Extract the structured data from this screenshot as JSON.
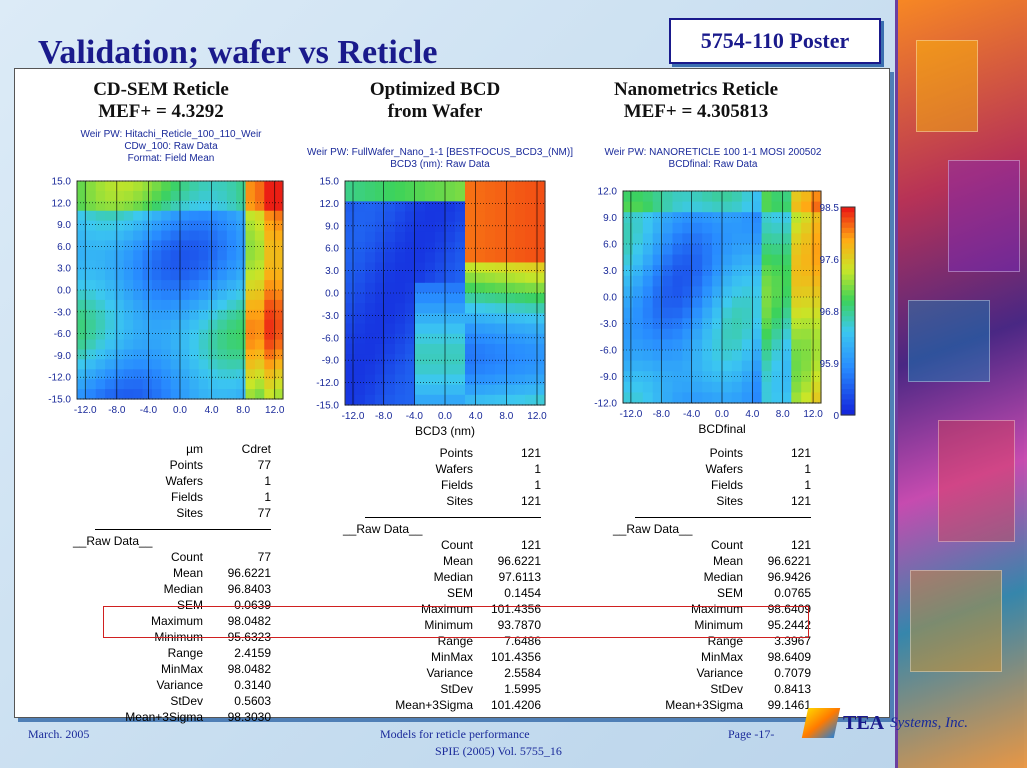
{
  "slide": {
    "title": "Validation; wafer vs Reticle",
    "poster_tag": "5754-110 Poster"
  },
  "columns": [
    {
      "heading_line1": "CD-SEM Reticle",
      "heading_line2": "MEF+ = 4.3292",
      "plot_caption": [
        "Weir PW: Hitachi_Reticle_100_110_Weir",
        "CDw_100: Raw Data",
        "Format: Field Mean"
      ],
      "y_ticks": [
        "15.0",
        "12.0",
        "9.0",
        "6.0",
        "3.0",
        "0.0",
        "-3.0",
        "-6.0",
        "-9.0",
        "-12.0",
        "-15.0"
      ],
      "x_ticks": [
        "-12.0",
        "-8.0",
        "-4.0",
        "0.0",
        "4.0",
        "8.0",
        "12.0"
      ],
      "x_label": "",
      "stats_header": {
        "unit": "µm",
        "name": "Cdret"
      },
      "stats_top": [
        {
          "label": "Points",
          "value": "77"
        },
        {
          "label": "Wafers",
          "value": "1"
        },
        {
          "label": "Fields",
          "value": "1"
        },
        {
          "label": "Sites",
          "value": "77"
        }
      ],
      "raw_data_label": "__Raw Data__",
      "stats_raw": [
        {
          "label": "Count",
          "value": "77"
        },
        {
          "label": "Mean",
          "value": "96.6221"
        },
        {
          "label": "Median",
          "value": "96.8403"
        },
        {
          "label": "SEM",
          "value": "0.0639"
        },
        {
          "label": "Maximum",
          "value": "98.0482"
        },
        {
          "label": "Minimum",
          "value": "95.6323"
        },
        {
          "label": "Range",
          "value": "2.4159"
        },
        {
          "label": "MinMax",
          "value": "98.0482"
        },
        {
          "label": "Variance",
          "value": "0.3140"
        },
        {
          "label": "StDev",
          "value": "0.5603"
        },
        {
          "label": "Mean+3Sigma",
          "value": "98.3030"
        }
      ]
    },
    {
      "heading_line1": "Optimized BCD",
      "heading_line2": "from Wafer",
      "plot_caption": [
        "Weir PW: FullWafer_Nano_1-1 [BESTFOCUS_BCD3_(NM)]",
        "BCD3 (nm): Raw Data"
      ],
      "y_ticks": [
        "15.0",
        "12.0",
        "9.0",
        "6.0",
        "3.0",
        "0.0",
        "-3.0",
        "-6.0",
        "-9.0",
        "-12.0",
        "-15.0"
      ],
      "x_ticks": [
        "-12.0",
        "-8.0",
        "-4.0",
        "0.0",
        "4.0",
        "8.0",
        "12.0"
      ],
      "x_label": "BCD3 (nm)",
      "stats_top": [
        {
          "label": "Points",
          "value": "121"
        },
        {
          "label": "Wafers",
          "value": "1"
        },
        {
          "label": "Fields",
          "value": "1"
        },
        {
          "label": "Sites",
          "value": "121"
        }
      ],
      "raw_data_label": "__Raw Data__",
      "stats_raw": [
        {
          "label": "Count",
          "value": "121"
        },
        {
          "label": "Mean",
          "value": "96.6221"
        },
        {
          "label": "Median",
          "value": "97.6113"
        },
        {
          "label": "SEM",
          "value": "0.1454"
        },
        {
          "label": "Maximum",
          "value": "101.4356"
        },
        {
          "label": "Minimum",
          "value": "93.7870"
        },
        {
          "label": "Range",
          "value": "7.6486"
        },
        {
          "label": "MinMax",
          "value": "101.4356"
        },
        {
          "label": "Variance",
          "value": "2.5584"
        },
        {
          "label": "StDev",
          "value": "1.5995"
        },
        {
          "label": "Mean+3Sigma",
          "value": "101.4206"
        }
      ]
    },
    {
      "heading_line1": "Nanometrics Reticle",
      "heading_line2": "MEF+ = 4.305813",
      "plot_caption": [
        "Weir PW: NANORETICLE 100 1-1 MOSI 200502",
        "BCDfinal: Raw Data"
      ],
      "y_ticks": [
        "12.0",
        "9.0",
        "6.0",
        "3.0",
        "0.0",
        "-3.0",
        "-6.0",
        "-9.0",
        "-12.0"
      ],
      "x_ticks": [
        "-12.0",
        "-8.0",
        "-4.0",
        "0.0",
        "4.0",
        "8.0",
        "12.0"
      ],
      "x_label": "BCDfinal",
      "stats_top": [
        {
          "label": "Points",
          "value": "121"
        },
        {
          "label": "Wafers",
          "value": "1"
        },
        {
          "label": "Fields",
          "value": "1"
        },
        {
          "label": "Sites",
          "value": "121"
        }
      ],
      "raw_data_label": "__Raw Data__",
      "stats_raw": [
        {
          "label": "Count",
          "value": "121"
        },
        {
          "label": "Mean",
          "value": "96.6221"
        },
        {
          "label": "Median",
          "value": "96.9426"
        },
        {
          "label": "SEM",
          "value": "0.0765"
        },
        {
          "label": "Maximum",
          "value": "98.6409"
        },
        {
          "label": "Minimum",
          "value": "95.2442"
        },
        {
          "label": "Range",
          "value": "3.3967"
        },
        {
          "label": "MinMax",
          "value": "98.6409"
        },
        {
          "label": "Variance",
          "value": "0.7079"
        },
        {
          "label": "StDev",
          "value": "0.8413"
        },
        {
          "label": "Mean+3Sigma",
          "value": "99.1461"
        }
      ]
    }
  ],
  "colorbar": {
    "ticks": [
      "98.5",
      "97.6",
      "96.8",
      "95.9",
      "0"
    ]
  },
  "footer": {
    "date": "March. 2005",
    "topic": "Models for reticle performance",
    "page": "Page -17-",
    "citation": "SPIE (2005) Vol. 5755_16",
    "logo_word": "TEA",
    "logo_sub": "Systems, Inc."
  },
  "colors": {
    "title": "#1a1a8c",
    "highlight": "#d02020",
    "caption": "#1a2a9a"
  }
}
